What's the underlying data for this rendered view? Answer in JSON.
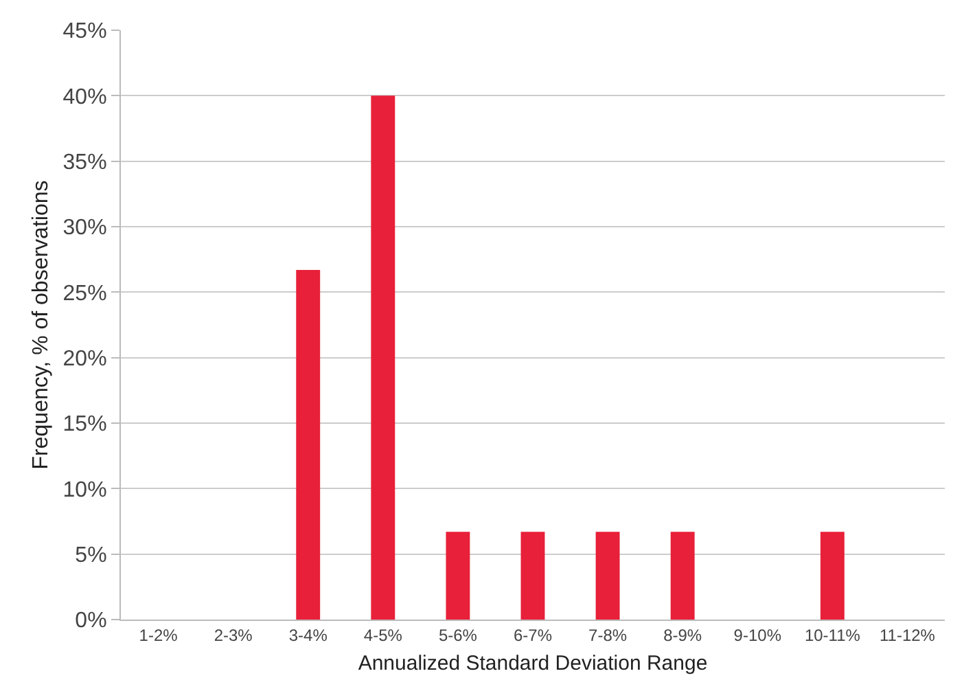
{
  "chart_data": {
    "type": "bar",
    "xlabel": "Annualized Standard Deviation Range",
    "ylabel": "Frequency, % of observations",
    "categories": [
      "1-2%",
      "2-3%",
      "3-4%",
      "4-5%",
      "5-6%",
      "6-7%",
      "7-8%",
      "8-9%",
      "9-10%",
      "10-11%",
      "11-12%"
    ],
    "values": [
      0,
      0,
      26.7,
      40,
      6.7,
      6.7,
      6.7,
      6.7,
      0,
      6.7,
      0
    ],
    "color": "#e8203a",
    "ylim": [
      0,
      45
    ],
    "yticks": [
      {
        "value": 0,
        "label": "0%"
      },
      {
        "value": 5,
        "label": "5%"
      },
      {
        "value": 10,
        "label": "10%"
      },
      {
        "value": 15,
        "label": "15%"
      },
      {
        "value": 20,
        "label": "20%"
      },
      {
        "value": 25,
        "label": "25%"
      },
      {
        "value": 30,
        "label": "30%"
      },
      {
        "value": 35,
        "label": "35%"
      },
      {
        "value": 40,
        "label": "40%"
      },
      {
        "value": 45,
        "label": "45%"
      }
    ],
    "grid": "y",
    "legend": false
  }
}
